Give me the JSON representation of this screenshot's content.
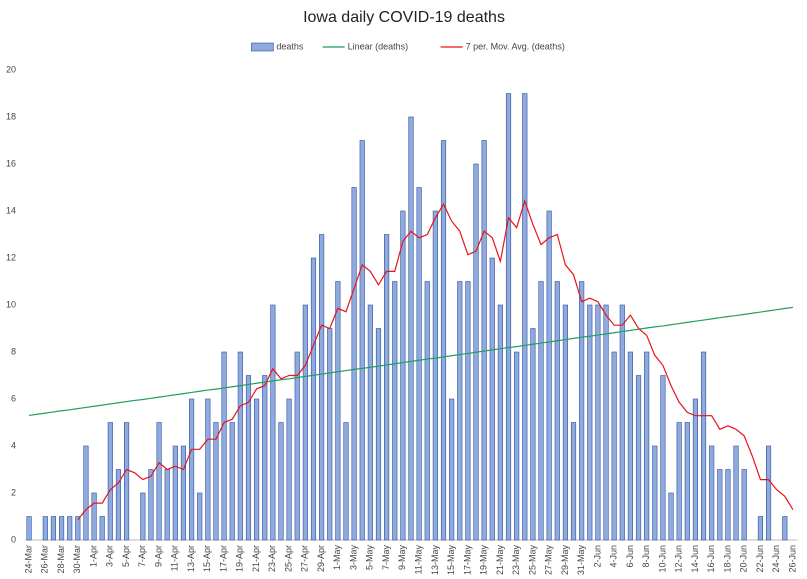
{
  "chart_data": {
    "type": "bar",
    "title": "Iowa daily COVID-19 deaths",
    "categories": [
      "24-Mar",
      null,
      "26-Mar",
      null,
      "28-Mar",
      null,
      "30-Mar",
      null,
      "1-Apr",
      null,
      "3-Apr",
      null,
      "5-Apr",
      null,
      "7-Apr",
      null,
      "9-Apr",
      null,
      "11-Apr",
      null,
      "13-Apr",
      null,
      "15-Apr",
      null,
      "17-Apr",
      null,
      "19-Apr",
      null,
      "21-Apr",
      null,
      "23-Apr",
      null,
      "25-Apr",
      null,
      "27-Apr",
      null,
      "29-Apr",
      null,
      "1-May",
      null,
      "3-May",
      null,
      "5-May",
      null,
      "7-May",
      null,
      "9-May",
      null,
      "11-May",
      null,
      "13-May",
      null,
      "15-May",
      null,
      "17-May",
      null,
      "19-May",
      null,
      "21-May",
      null,
      "23-May",
      null,
      "25-May",
      null,
      "27-May",
      null,
      "29-May",
      null,
      "31-May",
      null,
      "2-Jun",
      null,
      "4-Jun",
      null,
      "6-Jun",
      null,
      "8-Jun",
      null,
      "10-Jun",
      null,
      "12-Jun",
      null,
      "14-Jun",
      null,
      "16-Jun",
      null,
      "18-Jun",
      null,
      "20-Jun",
      null,
      "22-Jun",
      null,
      "24-Jun",
      null,
      "26-Jun"
    ],
    "series": [
      {
        "name": "deaths",
        "type": "bar",
        "color": "#8faadc",
        "values": [
          1,
          0,
          1,
          1,
          1,
          1,
          1,
          4,
          2,
          1,
          5,
          3,
          5,
          0,
          2,
          3,
          5,
          3,
          4,
          4,
          6,
          2,
          6,
          5,
          8,
          5,
          8,
          7,
          6,
          7,
          10,
          5,
          6,
          8,
          10,
          12,
          13,
          9,
          11,
          5,
          15,
          17,
          10,
          9,
          13,
          11,
          14,
          18,
          15,
          11,
          14,
          17,
          6,
          11,
          11,
          16,
          17,
          12,
          10,
          19,
          8,
          19,
          9,
          11,
          14,
          11,
          10,
          5,
          11,
          10,
          10,
          10,
          8,
          10,
          8,
          7,
          8,
          4,
          7,
          2,
          5,
          5,
          6,
          8,
          4,
          3,
          3,
          4,
          3,
          0,
          1,
          4,
          0,
          1,
          0
        ]
      },
      {
        "name": "Linear (deaths)",
        "type": "line",
        "color": "#1fa05a",
        "values": [
          5.3,
          5.35,
          5.4,
          5.45,
          5.5,
          5.54,
          5.59,
          5.64,
          5.69,
          5.74,
          5.79,
          5.84,
          5.89,
          5.94,
          5.98,
          6.03,
          6.08,
          6.13,
          6.18,
          6.23,
          6.28,
          6.33,
          6.38,
          6.42,
          6.47,
          6.52,
          6.57,
          6.62,
          6.67,
          6.72,
          6.77,
          6.82,
          6.86,
          6.91,
          6.96,
          7.01,
          7.06,
          7.11,
          7.16,
          7.21,
          7.26,
          7.3,
          7.35,
          7.4,
          7.45,
          7.5,
          7.55,
          7.6,
          7.65,
          7.7,
          7.74,
          7.79,
          7.84,
          7.89,
          7.94,
          7.99,
          8.04,
          8.09,
          8.14,
          8.19,
          8.23,
          8.28,
          8.33,
          8.38,
          8.43,
          8.48,
          8.53,
          8.58,
          8.63,
          8.67,
          8.72,
          8.77,
          8.82,
          8.87,
          8.92,
          8.97,
          9.02,
          9.07,
          9.11,
          9.16,
          9.21,
          9.26,
          9.31,
          9.36,
          9.41,
          9.46,
          9.51,
          9.55,
          9.6,
          9.65,
          9.7,
          9.75,
          9.8,
          9.85,
          9.9
        ]
      },
      {
        "name": "7 per. Mov. Avg. (deaths)",
        "type": "line",
        "color": "#e8141c",
        "values": [
          null,
          null,
          null,
          null,
          null,
          null,
          0.86,
          1.29,
          1.57,
          1.57,
          2.14,
          2.43,
          3.0,
          2.86,
          2.57,
          2.71,
          3.29,
          3.0,
          3.14,
          3.0,
          3.86,
          3.86,
          4.29,
          4.29,
          5.0,
          5.14,
          5.71,
          5.86,
          6.43,
          6.57,
          7.29,
          6.86,
          7.0,
          7.0,
          7.43,
          8.29,
          9.14,
          9.0,
          9.86,
          9.71,
          10.71,
          11.71,
          11.43,
          10.86,
          11.43,
          11.43,
          12.71,
          13.14,
          12.86,
          13.0,
          13.71,
          14.29,
          13.57,
          13.14,
          12.14,
          12.29,
          13.14,
          12.86,
          11.86,
          13.71,
          13.29,
          14.43,
          13.43,
          12.57,
          12.86,
          13.0,
          11.71,
          11.29,
          10.14,
          10.29,
          10.14,
          9.57,
          9.14,
          9.14,
          9.57,
          9.0,
          8.71,
          7.86,
          7.43,
          6.57,
          5.86,
          5.43,
          5.29,
          5.29,
          5.29,
          4.71,
          4.86,
          4.71,
          4.43,
          3.57,
          2.57,
          2.57,
          2.14,
          1.86,
          1.29
        ]
      }
    ],
    "ylim": [
      0,
      20
    ],
    "yticks": [
      0,
      2,
      4,
      6,
      8,
      10,
      12,
      14,
      16,
      18,
      20
    ],
    "grid": false,
    "legend": "top"
  }
}
